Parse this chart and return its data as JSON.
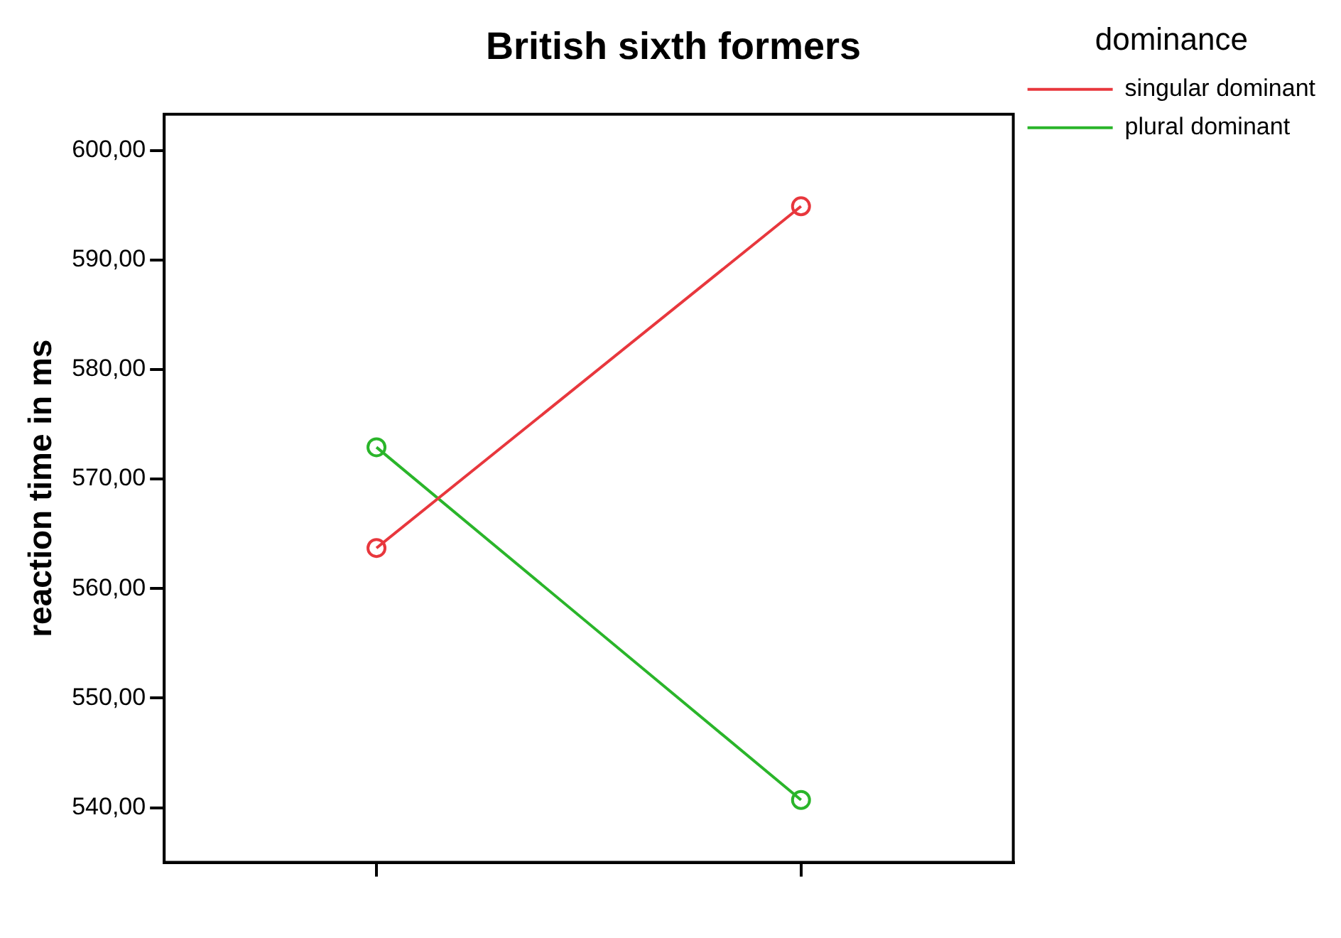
{
  "chart_data": {
    "type": "line",
    "title": "British sixth formers",
    "ylabel": "reaction time in ms",
    "legend_title": "dominance",
    "categories": [
      null,
      null
    ],
    "series": [
      {
        "name": "singular dominant",
        "color": "#e8373d",
        "values": [
          563.7,
          594.9
        ]
      },
      {
        "name": "plural dominant",
        "color": "#2ab52a",
        "values": [
          572.9,
          540.7
        ]
      }
    ],
    "ylim": [
      535,
      603.3
    ],
    "yticks": [
      {
        "value": 540,
        "label": "540,00"
      },
      {
        "value": 550,
        "label": "550,00"
      },
      {
        "value": 560,
        "label": "560,00"
      },
      {
        "value": 570,
        "label": "570,00"
      },
      {
        "value": 580,
        "label": "580,00"
      },
      {
        "value": 590,
        "label": "590,00"
      },
      {
        "value": 600,
        "label": "600,00"
      }
    ],
    "marker": "circle",
    "line_style": "solid",
    "grid": false,
    "legend": "top right"
  }
}
